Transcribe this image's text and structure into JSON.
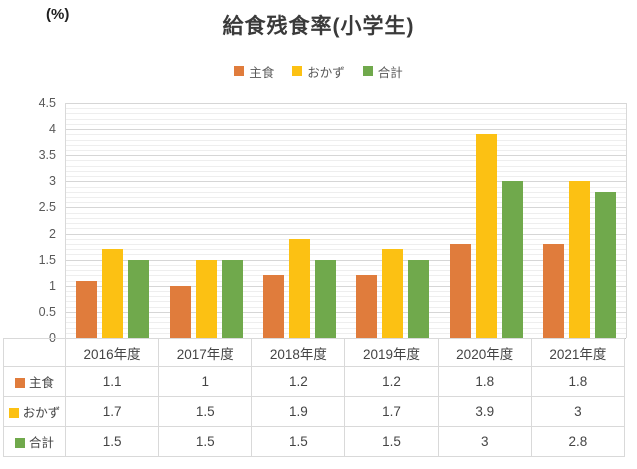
{
  "chart_data": {
    "type": "bar",
    "title": "給食残食率(小学生)",
    "unit_label": "(%)",
    "categories": [
      "2016年度",
      "2017年度",
      "2018年度",
      "2019年度",
      "2020年度",
      "2021年度"
    ],
    "series": [
      {
        "name": "主食",
        "color": "#E07C3C",
        "values": [
          1.1,
          1,
          1.2,
          1.2,
          1.8,
          1.8
        ]
      },
      {
        "name": "おかず",
        "color": "#FCC113",
        "values": [
          1.7,
          1.5,
          1.9,
          1.7,
          3.9,
          3
        ]
      },
      {
        "name": "合計",
        "color": "#70A94C",
        "values": [
          1.5,
          1.5,
          1.5,
          1.5,
          3,
          2.8
        ]
      }
    ],
    "ylim": [
      0,
      4.5
    ],
    "y_major_ticks": [
      0,
      0.5,
      1,
      1.5,
      2,
      2.5,
      3,
      3.5,
      4,
      4.5
    ],
    "y_minor_unit": 0.1,
    "grid": true,
    "legend_position": "top",
    "data_table_shown": true,
    "colors": {
      "gridline_major": "#D6D6D6",
      "gridline_minor": "#EEEEEE",
      "axis_line": "#BFBFBF",
      "table_border": "#D9D9D9",
      "text": "#444444"
    }
  }
}
